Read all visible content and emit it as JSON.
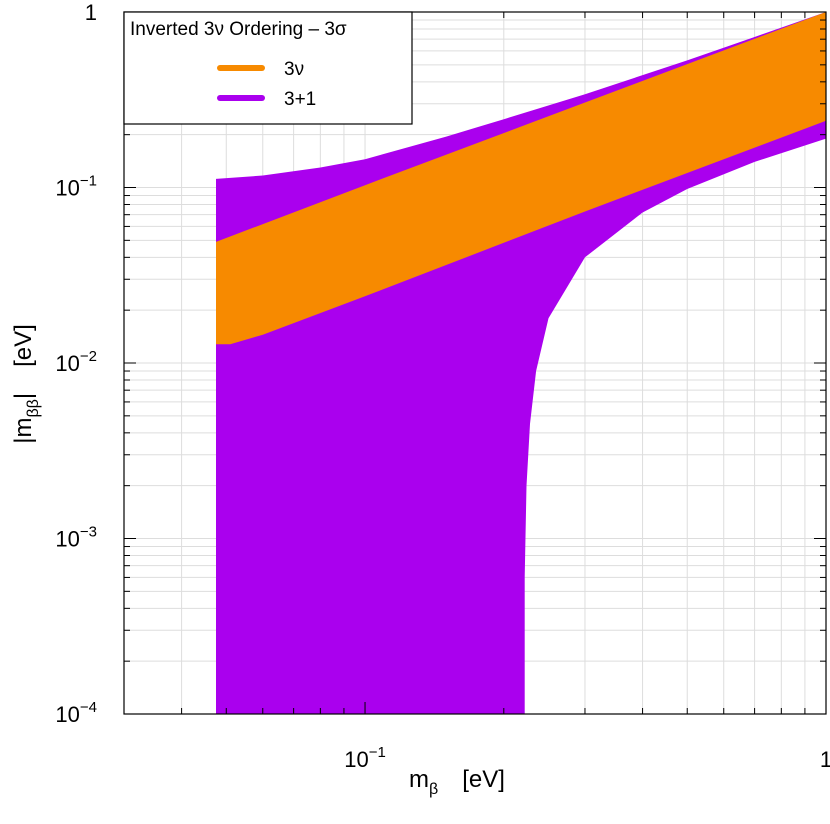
{
  "chart_data": {
    "type": "area",
    "title": "Inverted 3ν Ordering – 3σ",
    "xlabel_main": "m",
    "xlabel_sub": "β",
    "xlabel_unit": "[eV]",
    "ylabel_main": "|m",
    "ylabel_sub": "ββ",
    "ylabel_close": "|",
    "ylabel_unit": "[eV]",
    "x_scale": "log",
    "y_scale": "log",
    "xlim": [
      0.03,
      1
    ],
    "ylim": [
      0.0001,
      1
    ],
    "grid": true,
    "legend_position": "top-left",
    "x_ticks": [
      {
        "value": 0.1,
        "base": "10",
        "exp": "−1"
      },
      {
        "value": 1,
        "base": "1",
        "exp": ""
      }
    ],
    "y_ticks": [
      {
        "value": 0.0001,
        "base": "10",
        "exp": "−4"
      },
      {
        "value": 0.001,
        "base": "10",
        "exp": "−3"
      },
      {
        "value": 0.01,
        "base": "10",
        "exp": "−2"
      },
      {
        "value": 0.1,
        "base": "10",
        "exp": "−1"
      },
      {
        "value": 1,
        "base": "1",
        "exp": ""
      }
    ],
    "series": [
      {
        "name": "3+1",
        "color": "#aa00ee",
        "upper": [
          [
            0.0475,
            0.112
          ],
          [
            0.06,
            0.117
          ],
          [
            0.08,
            0.13
          ],
          [
            0.1,
            0.145
          ],
          [
            0.15,
            0.195
          ],
          [
            0.2,
            0.245
          ],
          [
            0.3,
            0.34
          ],
          [
            0.5,
            0.53
          ],
          [
            0.7,
            0.72
          ],
          [
            1.0,
            1.0
          ]
        ],
        "lower": [
          [
            0.0475,
            0.0001
          ],
          [
            0.222,
            0.0001
          ],
          [
            0.222,
            0.0006
          ],
          [
            0.224,
            0.002
          ],
          [
            0.228,
            0.0045
          ],
          [
            0.235,
            0.009
          ],
          [
            0.25,
            0.018
          ],
          [
            0.3,
            0.04
          ],
          [
            0.4,
            0.072
          ],
          [
            0.5,
            0.098
          ],
          [
            0.7,
            0.14
          ],
          [
            1.0,
            0.19
          ]
        ]
      },
      {
        "name": "3ν",
        "color": "#f78a00",
        "upper": [
          [
            0.0475,
            0.049
          ],
          [
            0.1,
            0.103
          ],
          [
            0.3,
            0.305
          ],
          [
            1.0,
            1.0
          ]
        ],
        "lower": [
          [
            0.0475,
            0.0128
          ],
          [
            0.051,
            0.0128
          ],
          [
            0.06,
            0.0145
          ],
          [
            0.1,
            0.024
          ],
          [
            0.3,
            0.073
          ],
          [
            1.0,
            0.24
          ]
        ]
      }
    ]
  }
}
